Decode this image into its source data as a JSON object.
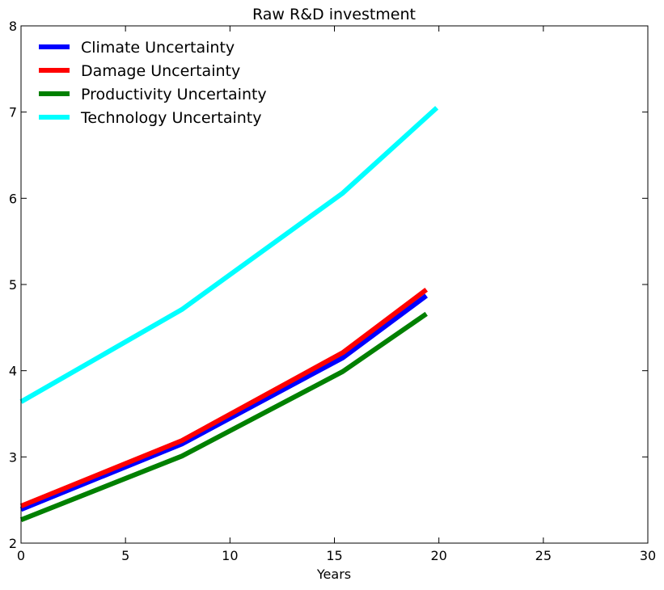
{
  "chart_data": {
    "type": "line",
    "title": "Raw R&D investment",
    "xlabel": "Years",
    "ylabel": "",
    "xlim": [
      0,
      30
    ],
    "ylim": [
      2,
      8
    ],
    "xticks": [
      0,
      5,
      10,
      15,
      20,
      25,
      30
    ],
    "yticks": [
      2,
      3,
      4,
      5,
      6,
      7,
      8
    ],
    "grid": false,
    "legend_position": "top-left",
    "series": [
      {
        "name": "Climate Uncertainty",
        "color": "#0000ff",
        "x": [
          0,
          7.7,
          15.4,
          19.4
        ],
        "y": [
          2.39,
          3.15,
          4.15,
          4.87
        ]
      },
      {
        "name": "Damage Uncertainty",
        "color": "#ff0000",
        "x": [
          0,
          7.7,
          15.4,
          19.4
        ],
        "y": [
          2.43,
          3.19,
          4.21,
          4.94
        ]
      },
      {
        "name": "Productivity Uncertainty",
        "color": "#008000",
        "x": [
          0,
          7.7,
          15.4,
          19.4
        ],
        "y": [
          2.27,
          3.01,
          3.99,
          4.66
        ]
      },
      {
        "name": "Technology Uncertainty",
        "color": "#00ffff",
        "x": [
          0,
          7.7,
          15.4,
          19.9
        ],
        "y": [
          3.64,
          4.71,
          6.06,
          7.05
        ]
      }
    ]
  }
}
